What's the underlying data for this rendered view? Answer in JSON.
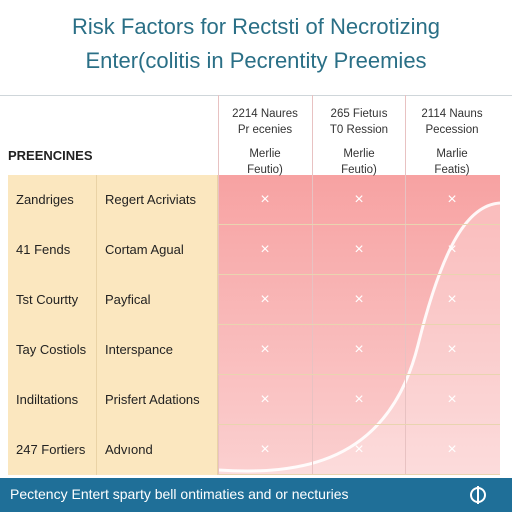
{
  "header": {
    "title": [
      "Risk Factors for Rectsti of Necrotizing",
      "Enter(colitis in Pecrentity Preemies"
    ]
  },
  "table": {
    "row_header": "PREENCINES",
    "columns": [
      [
        "2214 Naures",
        "Pr ecenies",
        "Merlie",
        "Feutio)"
      ],
      [
        "265 Fietuıs",
        "T0 Ression",
        "Merlie",
        "Feutio)"
      ],
      [
        "2114 Nauns",
        "Pecession",
        "Marlie",
        "Featis)"
      ]
    ],
    "rows": [
      {
        "label": "Zandriges",
        "factor": "Regert Acrivіats",
        "cells": [
          "×",
          "×",
          "×"
        ]
      },
      {
        "label": "41 Fends",
        "factor": "Cortam Agual",
        "cells": [
          "×",
          "×",
          "×"
        ]
      },
      {
        "label": "Tst Courtty",
        "factor": "Payfical",
        "cells": [
          "×",
          "×",
          "×"
        ]
      },
      {
        "label": "Tay Costiols",
        "factor": "Interspance",
        "cells": [
          "×",
          "×",
          "×"
        ]
      },
      {
        "label": "Indiltations",
        "factor": "Prisfert Adations",
        "cells": [
          "×",
          "×",
          "×"
        ]
      },
      {
        "label": "247 Fortiers",
        "factor": "Advıond",
        "cells": [
          "×",
          "×",
          "×"
        ]
      }
    ]
  },
  "footer": "Pectency Entert sparty bell ontimaties and or necturies"
}
